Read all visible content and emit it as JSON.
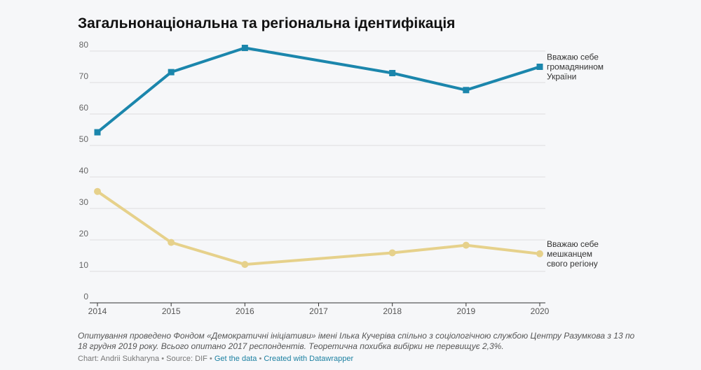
{
  "title": "Загальнонаціональна та регіональна ідентифікація",
  "chart_data": {
    "type": "line",
    "x": [
      2014,
      2015,
      2016,
      2018,
      2019,
      2020
    ],
    "x_ticks": [
      "2014",
      "2015",
      "2016",
      "2017",
      "2018",
      "2019",
      "2020"
    ],
    "xlim": [
      2014,
      2020
    ],
    "ylim": [
      0,
      80
    ],
    "y_ticks": [
      "0",
      "10",
      "20",
      "30",
      "40",
      "50",
      "60",
      "70",
      "80"
    ],
    "grid": true,
    "series": [
      {
        "name": "Вважаю себе громадянином України",
        "label_lines": [
          "Вважаю себе",
          "громадянином",
          "України"
        ],
        "values": [
          54.2,
          73.3,
          81.0,
          73.0,
          67.6,
          75.0
        ],
        "color": "#1b86ac",
        "marker": "square"
      },
      {
        "name": "Вважаю себе мешканцем свого регіону",
        "label_lines": [
          "Вважаю себе",
          "мешканцем",
          "свого регіону"
        ],
        "values": [
          35.4,
          19.2,
          12.2,
          15.9,
          18.3,
          15.6
        ],
        "color": "#e6d18b",
        "marker": "circle"
      }
    ]
  },
  "notes": "Опитування проведено Фондом «Демократичні ініціативи» імені Ілька Кучеріва спільно з соціологічною службою Центру Разумкова з 13 по 18 грудня 2019 року. Всього опитано 2017 респондентів. Теоретична похибка вибірки не перевищує 2,3%.",
  "footer": {
    "credit": "Chart: Andrii Sukharyna",
    "source": "Source: DIF",
    "get_data": "Get the data",
    "created": "Created with Datawrapper",
    "separator": "•"
  }
}
